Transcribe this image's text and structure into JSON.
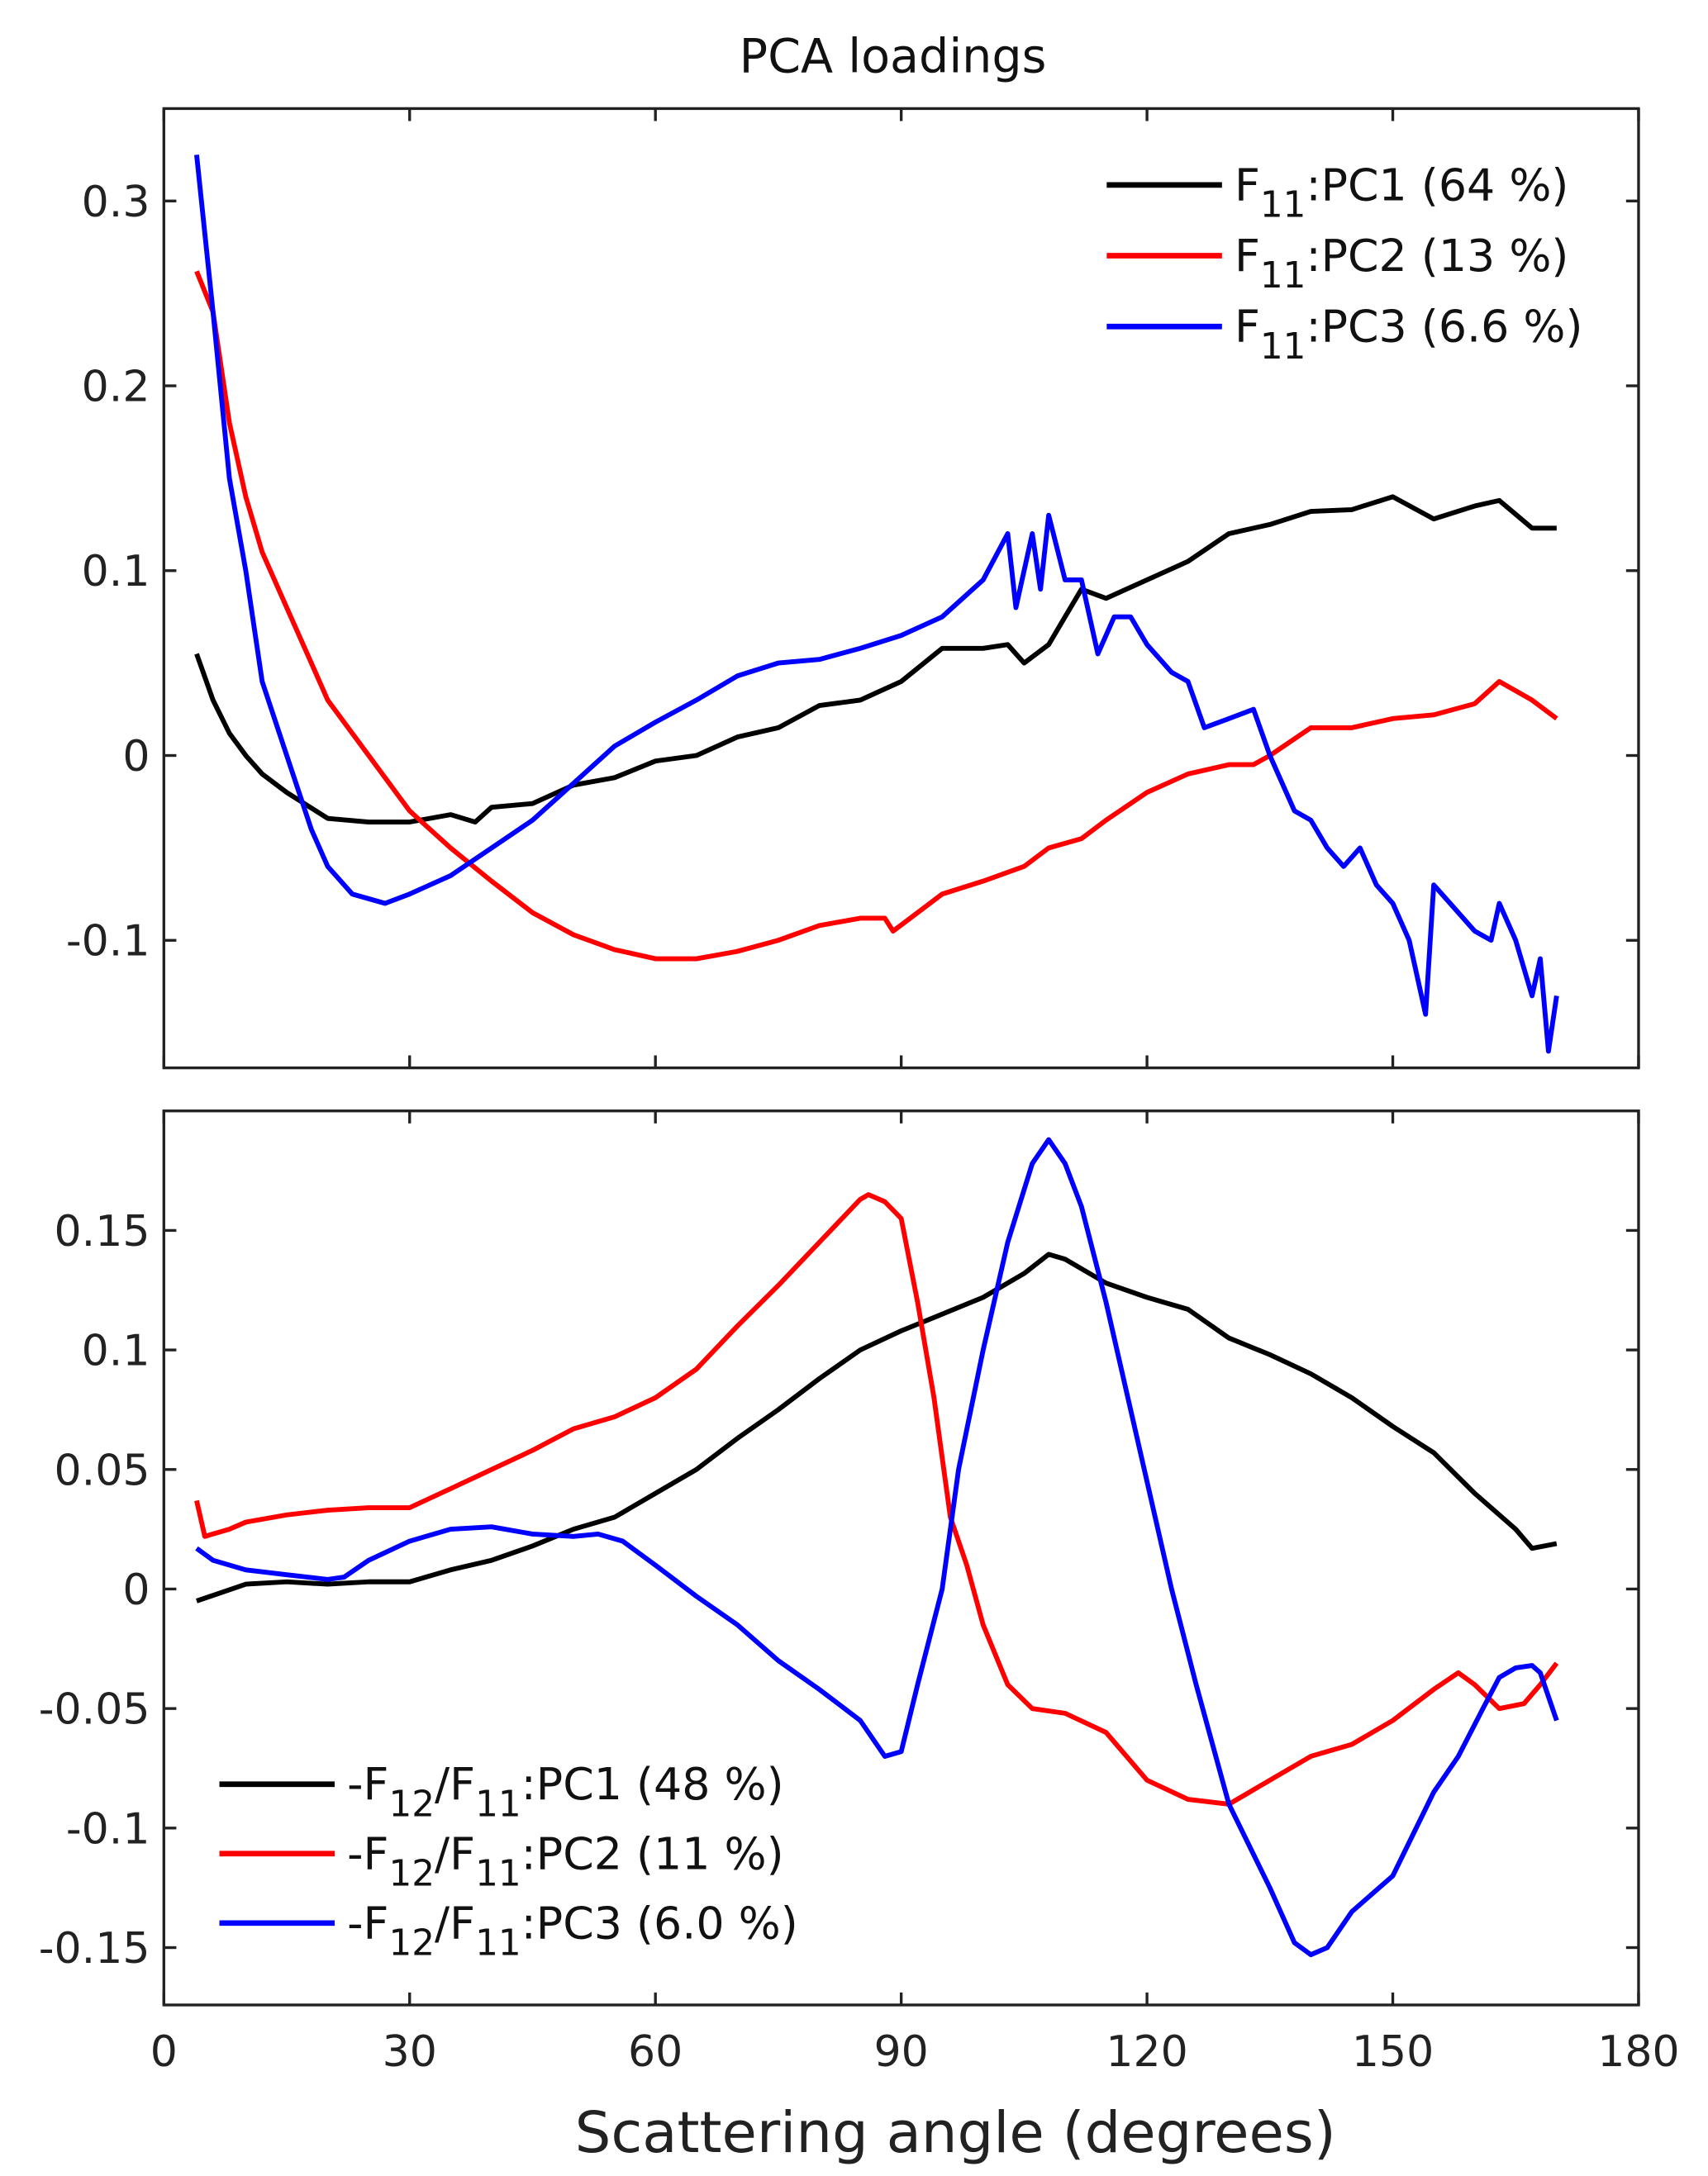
{
  "chart_data": [
    {
      "type": "line",
      "title": "PCA loadings",
      "xlabel": "",
      "ylabel": "",
      "xlim": [
        0,
        180
      ],
      "ylim": [
        -0.169,
        0.35
      ],
      "xticks": [
        0,
        30,
        60,
        90,
        120,
        150,
        180
      ],
      "yticks": [
        -0.1,
        0,
        0.1,
        0.2,
        0.3
      ],
      "ytick_labels": [
        "-0.1",
        "0",
        "0.1",
        "0.2",
        "0.3"
      ],
      "grid": false,
      "legend": "top-right",
      "series": [
        {
          "name": "F11:PC1 (64 %)",
          "color": "#000000",
          "label_parts": [
            {
              "t": "F"
            },
            {
              "t": "11",
              "sub": true
            },
            {
              "t": ":PC1 (64 %)"
            }
          ],
          "x": [
            4,
            6,
            8,
            10,
            12,
            15,
            20,
            25,
            30,
            35,
            38,
            40,
            45,
            50,
            55,
            60,
            65,
            70,
            75,
            80,
            85,
            90,
            95,
            100,
            103,
            105,
            108,
            110,
            112,
            115,
            120,
            125,
            130,
            135,
            140,
            145,
            150,
            155,
            160,
            163,
            167,
            170
          ],
          "y": [
            0.055,
            0.03,
            0.012,
            0.0,
            -0.01,
            -0.02,
            -0.034,
            -0.036,
            -0.036,
            -0.032,
            -0.036,
            -0.028,
            -0.026,
            -0.016,
            -0.012,
            -0.003,
            0.0,
            0.01,
            0.015,
            0.027,
            0.03,
            0.04,
            0.058,
            0.058,
            0.06,
            0.05,
            0.06,
            0.075,
            0.09,
            0.085,
            0.095,
            0.105,
            0.12,
            0.125,
            0.132,
            0.133,
            0.14,
            0.128,
            0.135,
            0.138,
            0.123,
            0.123
          ]
        },
        {
          "name": "F11:PC2 (13 %)",
          "color": "#ff0000",
          "label_parts": [
            {
              "t": "F"
            },
            {
              "t": "11",
              "sub": true
            },
            {
              "t": ":PC2 (13 %)"
            }
          ],
          "x": [
            4,
            6,
            8,
            10,
            12,
            15,
            18,
            20,
            25,
            30,
            35,
            40,
            45,
            50,
            55,
            60,
            65,
            70,
            75,
            80,
            85,
            88,
            89,
            92,
            95,
            100,
            105,
            108,
            112,
            115,
            120,
            125,
            130,
            133,
            135,
            140,
            145,
            150,
            155,
            160,
            163,
            167,
            170
          ],
          "y": [
            0.262,
            0.24,
            0.18,
            0.14,
            0.11,
            0.08,
            0.05,
            0.03,
            0.0,
            -0.03,
            -0.05,
            -0.068,
            -0.085,
            -0.097,
            -0.105,
            -0.11,
            -0.11,
            -0.106,
            -0.1,
            -0.092,
            -0.088,
            -0.088,
            -0.095,
            -0.085,
            -0.075,
            -0.068,
            -0.06,
            -0.05,
            -0.045,
            -0.035,
            -0.02,
            -0.01,
            -0.005,
            -0.005,
            0.0,
            0.015,
            0.015,
            0.02,
            0.022,
            0.028,
            0.04,
            0.03,
            0.02
          ]
        },
        {
          "name": "F11:PC3 (6.6 %)",
          "color": "#0000ff",
          "label_parts": [
            {
              "t": "F"
            },
            {
              "t": "11",
              "sub": true
            },
            {
              "t": ":PC3 (6.6 %)"
            }
          ],
          "x": [
            4,
            6,
            8,
            10,
            12,
            15,
            18,
            20,
            23,
            27,
            30,
            35,
            40,
            45,
            50,
            55,
            60,
            65,
            70,
            75,
            80,
            85,
            90,
            95,
            100,
            103,
            104,
            106,
            107,
            108,
            110,
            112,
            114,
            116,
            118,
            120,
            123,
            125,
            127,
            130,
            133,
            135,
            138,
            140,
            142,
            144,
            146,
            148,
            150,
            152,
            154,
            155,
            157,
            160,
            162,
            163,
            165,
            167,
            168,
            169,
            170
          ],
          "y": [
            0.325,
            0.24,
            0.15,
            0.1,
            0.04,
            0.0,
            -0.04,
            -0.06,
            -0.075,
            -0.08,
            -0.075,
            -0.065,
            -0.05,
            -0.035,
            -0.015,
            0.005,
            0.018,
            0.03,
            0.043,
            0.05,
            0.052,
            0.058,
            0.065,
            0.075,
            0.095,
            0.12,
            0.08,
            0.12,
            0.09,
            0.13,
            0.095,
            0.095,
            0.055,
            0.075,
            0.075,
            0.06,
            0.045,
            0.04,
            0.015,
            0.02,
            0.025,
            0.0,
            -0.03,
            -0.035,
            -0.05,
            -0.06,
            -0.05,
            -0.07,
            -0.08,
            -0.1,
            -0.14,
            -0.07,
            -0.08,
            -0.095,
            -0.1,
            -0.08,
            -0.1,
            -0.13,
            -0.11,
            -0.16,
            -0.13
          ]
        }
      ]
    },
    {
      "type": "line",
      "title": "",
      "xlabel": "Scattering angle (degrees)",
      "ylabel": "",
      "xlim": [
        0,
        180
      ],
      "ylim": [
        -0.174,
        0.2
      ],
      "xticks": [
        0,
        30,
        60,
        90,
        120,
        150,
        180
      ],
      "xtick_labels": [
        "0",
        "30",
        "60",
        "90",
        "120",
        "150",
        "180"
      ],
      "yticks": [
        -0.15,
        -0.1,
        -0.05,
        0,
        0.05,
        0.1,
        0.15
      ],
      "ytick_labels": [
        "-0.15",
        "-0.1",
        "-0.05",
        "0",
        "0.05",
        "0.1",
        "0.15"
      ],
      "grid": false,
      "legend": "bottom-left",
      "series": [
        {
          "name": "-F12/F11:PC1 (48 %)",
          "color": "#000000",
          "label_parts": [
            {
              "t": "-F"
            },
            {
              "t": "12",
              "sub": true
            },
            {
              "t": "/F"
            },
            {
              "t": "11",
              "sub": true
            },
            {
              "t": ":PC1 (48 %)"
            }
          ],
          "x": [
            4,
            10,
            15,
            20,
            25,
            30,
            35,
            40,
            45,
            50,
            55,
            60,
            65,
            70,
            75,
            80,
            85,
            90,
            95,
            100,
            105,
            108,
            110,
            115,
            120,
            125,
            130,
            135,
            140,
            145,
            150,
            155,
            160,
            165,
            167,
            170
          ],
          "y": [
            -0.005,
            0.002,
            0.003,
            0.002,
            0.003,
            0.003,
            0.008,
            0.012,
            0.018,
            0.025,
            0.03,
            0.04,
            0.05,
            0.063,
            0.075,
            0.088,
            0.1,
            0.108,
            0.115,
            0.122,
            0.132,
            0.14,
            0.138,
            0.128,
            0.122,
            0.117,
            0.105,
            0.098,
            0.09,
            0.08,
            0.068,
            0.057,
            0.04,
            0.025,
            0.017,
            0.019
          ]
        },
        {
          "name": "-F12/F11:PC2 (11 %)",
          "color": "#ff0000",
          "label_parts": [
            {
              "t": "-F"
            },
            {
              "t": "12",
              "sub": true
            },
            {
              "t": "/F"
            },
            {
              "t": "11",
              "sub": true
            },
            {
              "t": ":PC2 (11 %)"
            }
          ],
          "x": [
            4,
            5,
            8,
            10,
            15,
            20,
            25,
            30,
            35,
            40,
            45,
            50,
            55,
            60,
            65,
            70,
            75,
            80,
            85,
            86,
            88,
            90,
            92,
            94,
            96,
            98,
            100,
            103,
            106,
            110,
            115,
            120,
            125,
            130,
            135,
            140,
            145,
            150,
            155,
            158,
            160,
            163,
            166,
            168,
            170
          ],
          "y": [
            0.037,
            0.022,
            0.025,
            0.028,
            0.031,
            0.033,
            0.034,
            0.034,
            0.042,
            0.05,
            0.058,
            0.067,
            0.072,
            0.08,
            0.092,
            0.11,
            0.127,
            0.145,
            0.163,
            0.165,
            0.162,
            0.155,
            0.12,
            0.08,
            0.03,
            0.01,
            -0.015,
            -0.04,
            -0.05,
            -0.052,
            -0.06,
            -0.08,
            -0.088,
            -0.09,
            -0.08,
            -0.07,
            -0.065,
            -0.055,
            -0.042,
            -0.035,
            -0.04,
            -0.05,
            -0.048,
            -0.04,
            -0.031
          ]
        },
        {
          "name": "-F12/F11:PC3 (6.0 %)",
          "color": "#0000ff",
          "label_parts": [
            {
              "t": "-F"
            },
            {
              "t": "12",
              "sub": true
            },
            {
              "t": "/F"
            },
            {
              "t": "11",
              "sub": true
            },
            {
              "t": ":PC3 (6.0 %)"
            }
          ],
          "x": [
            4,
            6,
            10,
            15,
            20,
            22,
            25,
            30,
            35,
            40,
            45,
            50,
            53,
            56,
            60,
            65,
            70,
            75,
            80,
            85,
            88,
            90,
            92,
            95,
            97,
            100,
            103,
            106,
            108,
            110,
            112,
            115,
            118,
            120,
            123,
            126,
            130,
            135,
            138,
            140,
            142,
            145,
            150,
            155,
            158,
            161,
            163,
            165,
            167,
            168,
            170
          ],
          "y": [
            0.017,
            0.012,
            0.008,
            0.006,
            0.004,
            0.005,
            0.012,
            0.02,
            0.025,
            0.026,
            0.023,
            0.022,
            0.023,
            0.02,
            0.01,
            -0.003,
            -0.015,
            -0.03,
            -0.042,
            -0.055,
            -0.07,
            -0.068,
            -0.04,
            0.0,
            0.05,
            0.1,
            0.145,
            0.178,
            0.188,
            0.178,
            0.16,
            0.12,
            0.075,
            0.045,
            0.0,
            -0.04,
            -0.09,
            -0.125,
            -0.148,
            -0.153,
            -0.15,
            -0.135,
            -0.12,
            -0.085,
            -0.07,
            -0.05,
            -0.037,
            -0.033,
            -0.032,
            -0.035,
            -0.055
          ]
        }
      ]
    }
  ]
}
